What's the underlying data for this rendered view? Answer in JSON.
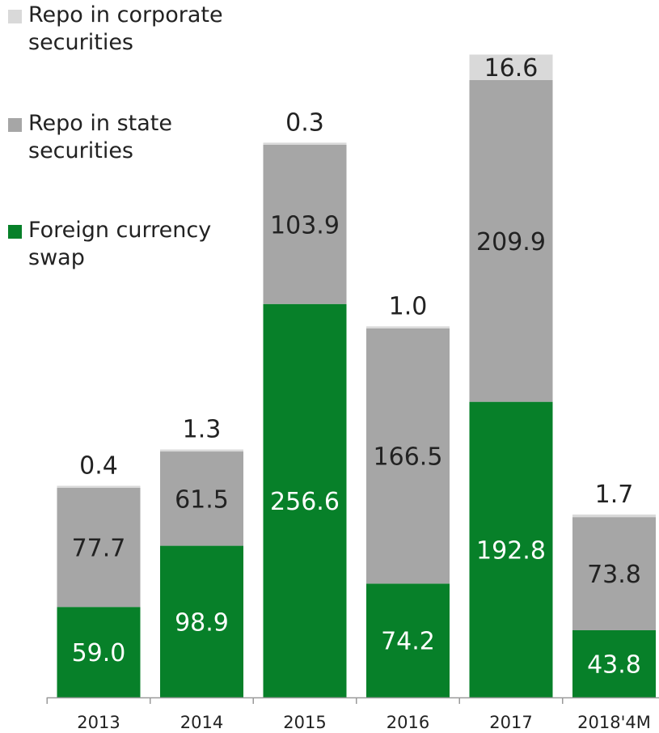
{
  "colors": {
    "corporate": "#d9d9d9",
    "state": "#a6a6a6",
    "swap": "#078029",
    "text_dark": "#222222",
    "text_light": "#ffffff",
    "axis": "#9a9a9a"
  },
  "legend": {
    "items": [
      {
        "label": "Repo in corporate securities",
        "series": "corporate"
      },
      {
        "label": "Repo in state securities",
        "series": "state"
      },
      {
        "label": "Foreign currency swap",
        "series": "swap"
      }
    ]
  },
  "chart_data": {
    "type": "bar",
    "stacked": true,
    "categories": [
      "2013",
      "2014",
      "2015",
      "2016",
      "2017",
      "2018'4M"
    ],
    "series": [
      {
        "name": "Foreign currency swap",
        "key": "swap",
        "values": [
          59.0,
          98.9,
          256.6,
          74.2,
          192.8,
          43.8
        ]
      },
      {
        "name": "Repo in state securities",
        "key": "state",
        "values": [
          77.7,
          61.5,
          103.9,
          166.5,
          209.9,
          73.8
        ]
      },
      {
        "name": "Repo in corporate securities",
        "key": "corporate",
        "values": [
          0.4,
          1.3,
          0.3,
          1.0,
          16.6,
          1.7
        ]
      }
    ],
    "title": "",
    "xlabel": "",
    "ylabel": "",
    "ylim": [
      0,
      420
    ],
    "grid": false,
    "legend_position": "top-left"
  }
}
